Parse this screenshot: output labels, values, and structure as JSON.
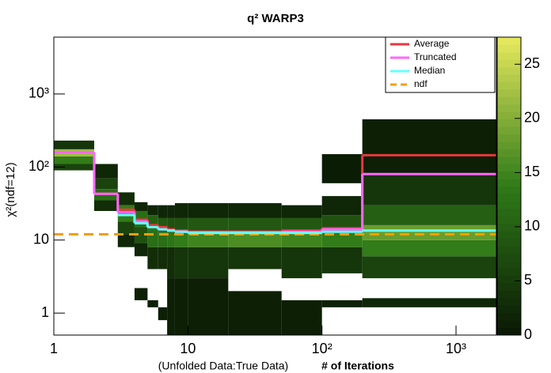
{
  "chart_data": {
    "type": "heatmap-steps",
    "title": "q² WARP3",
    "x_label": "(Unfolded Data:True Data)",
    "x_label_bold": "# of Iterations",
    "y_label": "χ²(ndf=12)",
    "xscale": "log",
    "yscale": "log",
    "xlim": [
      1,
      2000
    ],
    "ylim": [
      0.5,
      6000
    ],
    "zlim": [
      0,
      27.5
    ],
    "xticks": [
      1,
      10,
      {
        "value": 100,
        "label": "10²"
      },
      {
        "value": 1000,
        "label": "10³"
      }
    ],
    "yticks": [
      1,
      10,
      {
        "value": 100,
        "label": "10²"
      },
      {
        "value": 1000,
        "label": "10³"
      }
    ],
    "zticks": [
      0,
      5,
      10,
      15,
      20,
      25
    ],
    "colormap": [
      "#0a1804",
      "#2f7a18",
      "#e8ea5e"
    ],
    "xbins": [
      1,
      2,
      3,
      4,
      5,
      6,
      7,
      8,
      10,
      20,
      50,
      100,
      200,
      2000
    ],
    "columns": [
      [
        [
          90,
          110,
          6
        ],
        [
          110,
          140,
          14
        ],
        [
          140,
          175,
          22
        ],
        [
          175,
          230,
          4
        ]
      ],
      [
        [
          25,
          35,
          3
        ],
        [
          35,
          50,
          12
        ],
        [
          50,
          70,
          6
        ],
        [
          70,
          110,
          2
        ]
      ],
      [
        [
          8,
          12,
          2
        ],
        [
          12,
          18,
          6
        ],
        [
          18,
          30,
          14
        ],
        [
          30,
          45,
          3
        ]
      ],
      [
        [
          1.5,
          2.2,
          1
        ],
        [
          6,
          9,
          2
        ],
        [
          9,
          15,
          8
        ],
        [
          15,
          25,
          12
        ],
        [
          25,
          33,
          2
        ]
      ],
      [
        [
          1.2,
          1.5,
          1
        ],
        [
          4,
          8,
          3
        ],
        [
          8,
          14,
          12
        ],
        [
          14,
          22,
          10
        ],
        [
          22,
          30,
          2
        ]
      ],
      [
        [
          0.8,
          1.2,
          1
        ],
        [
          4,
          8,
          3
        ],
        [
          8,
          13,
          12
        ],
        [
          13,
          20,
          9
        ],
        [
          20,
          30,
          2
        ]
      ],
      [
        [
          0.5,
          3,
          1
        ],
        [
          3,
          8,
          3
        ],
        [
          8,
          13,
          13
        ],
        [
          13,
          20,
          8
        ],
        [
          20,
          30,
          2
        ]
      ],
      [
        [
          0.5,
          3,
          1
        ],
        [
          3,
          8,
          4
        ],
        [
          8,
          13,
          14
        ],
        [
          13,
          20,
          8
        ],
        [
          20,
          32,
          2
        ]
      ],
      [
        [
          0.5,
          3,
          1
        ],
        [
          3,
          8,
          4
        ],
        [
          8,
          13,
          15
        ],
        [
          13,
          20,
          9
        ],
        [
          20,
          32,
          2
        ]
      ],
      [
        [
          0.5,
          2,
          1
        ],
        [
          4,
          8,
          4
        ],
        [
          8,
          13,
          16
        ],
        [
          13,
          20,
          9
        ],
        [
          20,
          32,
          2
        ]
      ],
      [
        [
          0.5,
          1.5,
          1
        ],
        [
          3,
          8,
          4
        ],
        [
          8,
          13,
          15
        ],
        [
          13,
          20,
          9
        ],
        [
          20,
          30,
          2
        ]
      ],
      [
        [
          1.2,
          1.5,
          1
        ],
        [
          3.5,
          8,
          4
        ],
        [
          8,
          13,
          14
        ],
        [
          13,
          22,
          8
        ],
        [
          22,
          40,
          2
        ],
        [
          60,
          150,
          0.5
        ]
      ],
      [
        [
          1.2,
          1.6,
          2
        ],
        [
          3,
          6,
          6
        ],
        [
          6,
          10,
          14
        ],
        [
          10,
          16,
          18
        ],
        [
          16,
          30,
          10
        ],
        [
          30,
          80,
          4
        ],
        [
          80,
          450,
          1
        ]
      ]
    ],
    "series": [
      {
        "name": "Average",
        "color": "#e8383d",
        "values": [
          160,
          43,
          26,
          19,
          16,
          15,
          14,
          13.5,
          13,
          13,
          13.5,
          14.5,
          145
        ]
      },
      {
        "name": "Truncated",
        "color": "#ff66ff",
        "values": [
          160,
          43,
          24,
          18,
          15,
          14,
          13.5,
          13,
          12.8,
          12.8,
          13,
          14,
          80
        ]
      },
      {
        "name": "Median",
        "color": "#66ffff",
        "values": [
          null,
          null,
          22,
          17,
          15,
          14,
          13.5,
          13,
          12.5,
          12.5,
          12.5,
          13,
          13.5
        ]
      }
    ],
    "reference": {
      "name": "ndf",
      "color": "#f0a000",
      "value": 12
    },
    "legend": "top-right"
  }
}
